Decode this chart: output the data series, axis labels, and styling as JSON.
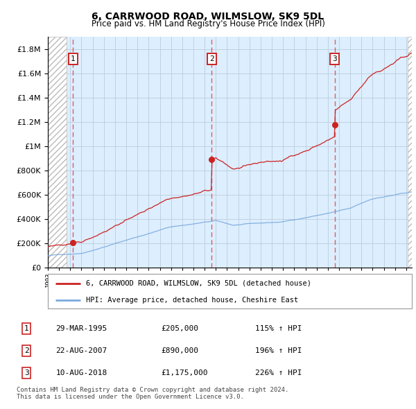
{
  "title": "6, CARRWOOD ROAD, WILMSLOW, SK9 5DL",
  "subtitle": "Price paid vs. HM Land Registry's House Price Index (HPI)",
  "ytick_values": [
    0,
    200000,
    400000,
    600000,
    800000,
    1000000,
    1200000,
    1400000,
    1600000,
    1800000
  ],
  "ylim": [
    0,
    1900000
  ],
  "xlim_start": 1993.0,
  "xlim_end": 2025.5,
  "sale_dates": [
    1995.23,
    2007.64,
    2018.61
  ],
  "sale_prices": [
    205000,
    890000,
    1175000
  ],
  "sale_labels": [
    "1",
    "2",
    "3"
  ],
  "legend_line1": "6, CARRWOOD ROAD, WILMSLOW, SK9 5DL (detached house)",
  "legend_line2": "HPI: Average price, detached house, Cheshire East",
  "table_data": [
    [
      "1",
      "29-MAR-1995",
      "£205,000",
      "115% ↑ HPI"
    ],
    [
      "2",
      "22-AUG-2007",
      "£890,000",
      "196% ↑ HPI"
    ],
    [
      "3",
      "10-AUG-2018",
      "£1,175,000",
      "226% ↑ HPI"
    ]
  ],
  "footer": "Contains HM Land Registry data © Crown copyright and database right 2024.\nThis data is licensed under the Open Government Licence v3.0.",
  "hpi_color": "#7aaadd",
  "sale_line_color": "#cc2222",
  "sale_dot_color": "#cc2222",
  "vline_color": "#dd4444",
  "plot_bg_color": "#ddeeff",
  "hatch_bg_color": "#e8e8e8"
}
